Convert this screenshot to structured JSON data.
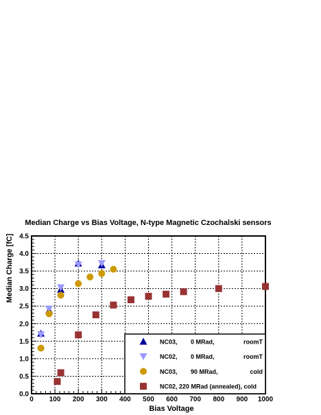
{
  "chart_data": {
    "type": "scatter",
    "title": "Median Charge vs Bias Voltage, N-type Magnetic Czochalski sensors",
    "xlabel": "Bias Voltage",
    "ylabel": "Median Charge [fC]",
    "xlim": [
      0,
      1000
    ],
    "ylim": [
      0,
      4.5
    ],
    "xticks": [
      0,
      100,
      200,
      300,
      400,
      500,
      600,
      700,
      800,
      900,
      1000
    ],
    "yticks": [
      0.0,
      0.5,
      1.0,
      1.5,
      2.0,
      2.5,
      3.0,
      3.5,
      4.0,
      4.5
    ],
    "xtick_labels": [
      "0",
      "100",
      "200",
      "300",
      "400",
      "500",
      "600",
      "700",
      "800",
      "900",
      "1000"
    ],
    "ytick_labels": [
      "0.0",
      "0.5",
      "1.0",
      "1.5",
      "2.0",
      "2.5",
      "3.0",
      "3.5",
      "4.0",
      "4.5"
    ],
    "grid": true,
    "legend_position": "bottom-right",
    "series": [
      {
        "name": "NC03,    0 MRad,              roomT",
        "legend_parts": [
          "NC03,",
          "0 MRad,",
          "roomT"
        ],
        "marker": "triangle-up",
        "color": "#000099",
        "x": [
          40,
          75,
          125,
          200,
          300
        ],
        "y": [
          1.72,
          2.38,
          2.97,
          3.72,
          3.67
        ]
      },
      {
        "name": "NC02,    0 MRad,              roomT",
        "legend_parts": [
          "NC02,",
          "0 MRad,",
          "roomT"
        ],
        "marker": "triangle-down",
        "color": "#9999ff",
        "x": [
          40,
          75,
          125,
          200,
          300
        ],
        "y": [
          1.69,
          2.42,
          3.03,
          3.68,
          3.72
        ]
      },
      {
        "name": "NC03,   90 MRad,                 cold",
        "legend_parts": [
          "NC03,",
          "90 MRad,",
          "cold"
        ],
        "marker": "circle",
        "color": "#cc9900",
        "x": [
          40,
          75,
          125,
          200,
          250,
          300,
          350
        ],
        "y": [
          1.3,
          2.28,
          2.81,
          3.14,
          3.33,
          3.43,
          3.55
        ]
      },
      {
        "name": "NC02, 220 MRad (annealed), cold",
        "legend_parts": [
          "NC02, 220 MRad (annealed), cold"
        ],
        "marker": "square",
        "color": "#993333",
        "x": [
          110,
          125,
          200,
          275,
          350,
          425,
          500,
          575,
          650,
          800,
          1000
        ],
        "y": [
          0.35,
          0.6,
          1.68,
          2.25,
          2.53,
          2.68,
          2.78,
          2.84,
          2.91,
          3.0,
          3.06
        ]
      }
    ]
  }
}
